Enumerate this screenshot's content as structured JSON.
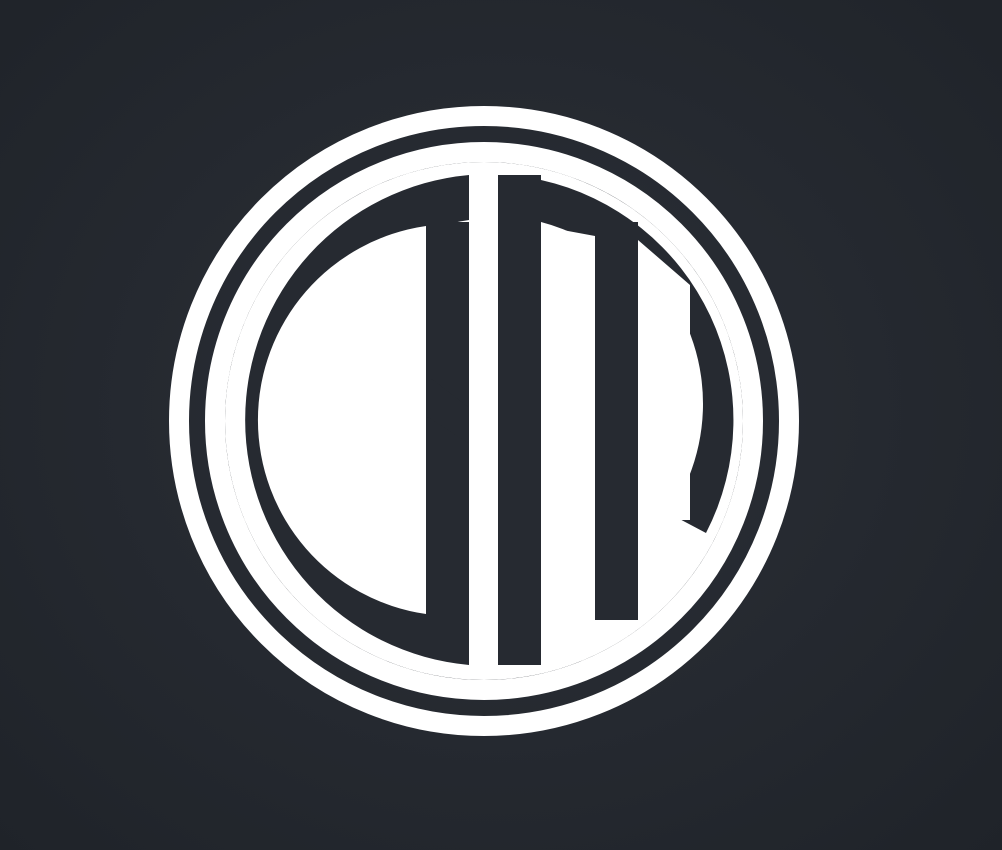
{
  "logo": {
    "monogram": "SM",
    "icon": "sm-monogram-logo-icon",
    "colors": {
      "background": "#262a31",
      "foreground": "#ffffff"
    }
  }
}
